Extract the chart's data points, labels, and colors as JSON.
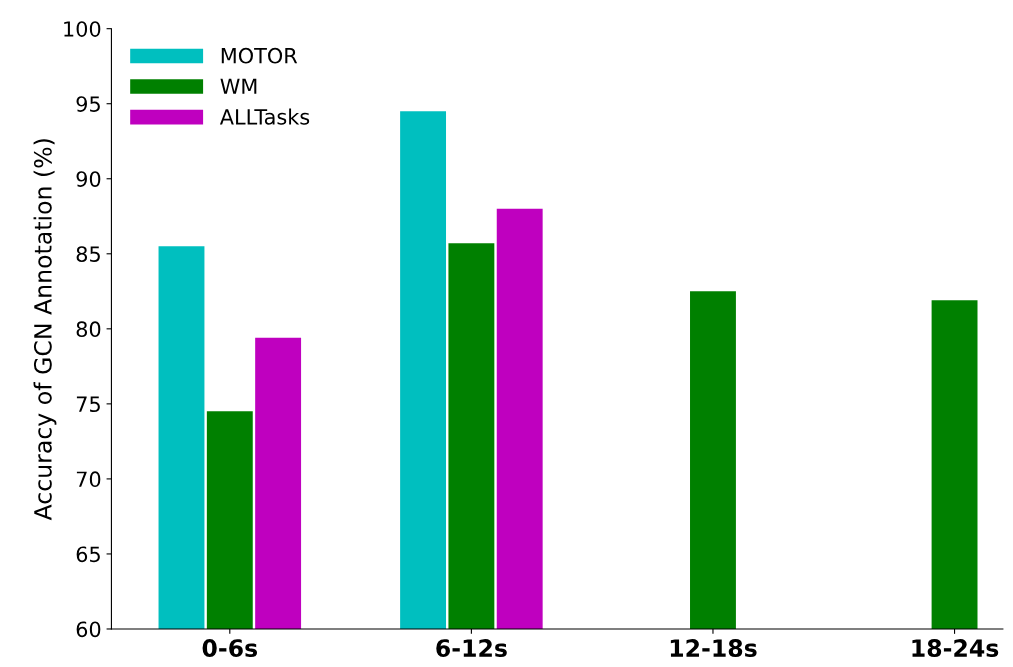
{
  "chart_data": {
    "type": "bar",
    "ylabel": "Accuracy of GCN Annotation (%)",
    "categories": [
      "0-6s",
      "6-12s",
      "12-18s",
      "18-24s"
    ],
    "series": [
      {
        "name": "MOTOR",
        "color": "#00bfbf",
        "values": [
          85.5,
          94.5,
          null,
          null
        ]
      },
      {
        "name": "WM",
        "color": "#008000",
        "values": [
          74.5,
          85.7,
          82.5,
          81.9
        ]
      },
      {
        "name": "ALLTasks",
        "color": "#bf00bf",
        "values": [
          79.4,
          88.0,
          null,
          null
        ]
      }
    ],
    "ylim": [
      60,
      100
    ],
    "yticks": [
      60,
      65,
      70,
      75,
      80,
      85,
      90,
      95,
      100
    ],
    "grid": false,
    "legend": "top left"
  }
}
